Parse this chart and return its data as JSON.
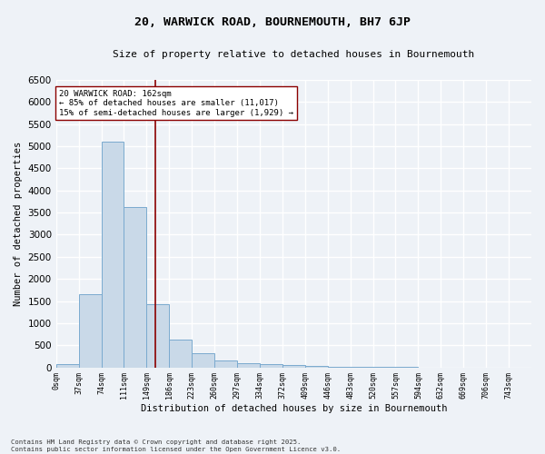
{
  "title": "20, WARWICK ROAD, BOURNEMOUTH, BH7 6JP",
  "subtitle": "Size of property relative to detached houses in Bournemouth",
  "xlabel": "Distribution of detached houses by size in Bournemouth",
  "ylabel": "Number of detached properties",
  "footer_line1": "Contains HM Land Registry data © Crown copyright and database right 2025.",
  "footer_line2": "Contains public sector information licensed under the Open Government Licence v3.0.",
  "bin_labels": [
    "0sqm",
    "37sqm",
    "74sqm",
    "111sqm",
    "149sqm",
    "186sqm",
    "223sqm",
    "260sqm",
    "297sqm",
    "334sqm",
    "372sqm",
    "409sqm",
    "446sqm",
    "483sqm",
    "520sqm",
    "557sqm",
    "594sqm",
    "632sqm",
    "669sqm",
    "706sqm",
    "743sqm"
  ],
  "bar_values": [
    75,
    1650,
    5100,
    3620,
    1430,
    620,
    310,
    155,
    100,
    70,
    50,
    30,
    10,
    5,
    3,
    2,
    1,
    1,
    0,
    0,
    0
  ],
  "bar_color": "#c9d9e8",
  "bar_edgecolor": "#7aaacf",
  "vline_x": 162,
  "vline_color": "#8b0000",
  "annotation_line1": "20 WARWICK ROAD: 162sqm",
  "annotation_line2": "← 85% of detached houses are smaller (11,017)",
  "annotation_line3": "15% of semi-detached houses are larger (1,929) →",
  "annotation_box_color": "#ffffff",
  "annotation_box_edgecolor": "#8b0000",
  "ylim": [
    0,
    6500
  ],
  "yticks": [
    0,
    500,
    1000,
    1500,
    2000,
    2500,
    3000,
    3500,
    4000,
    4500,
    5000,
    5500,
    6000,
    6500
  ],
  "bg_color": "#eef2f7",
  "grid_color": "#ffffff",
  "bin_width": 37,
  "figwidth": 6.0,
  "figheight": 5.0,
  "dpi": 100
}
